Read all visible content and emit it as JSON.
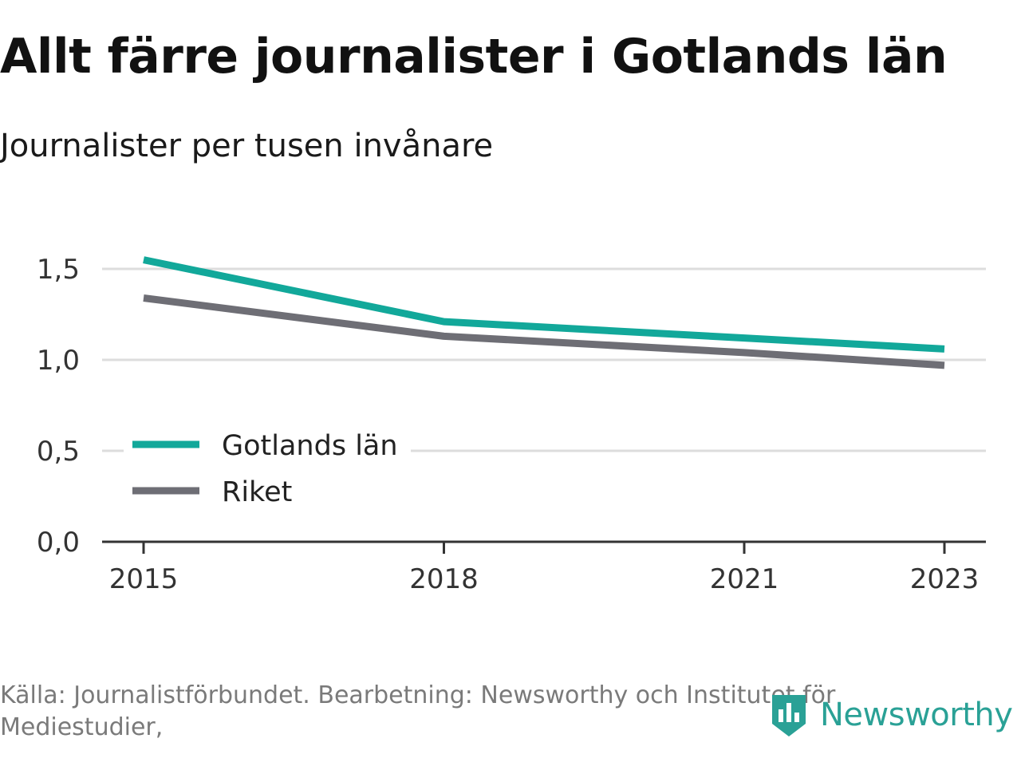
{
  "header": {
    "title": "Allt färre journalister i Gotlands län",
    "subtitle": "Journalister per tusen invånare"
  },
  "footer": {
    "source": "Källa: Journalistförbundet. Bearbetning: Newsworthy och Institutet för Mediestudier,",
    "logo_text": "Newsworthy"
  },
  "colors": {
    "gotland": "#12a89a",
    "riket": "#6e6e75",
    "grid": "#dddddd",
    "axis": "#333333",
    "brand": "#2aa196"
  },
  "chart_data": {
    "type": "line",
    "x": [
      2015,
      2018,
      2021,
      2023
    ],
    "x_ticks": [
      "2015",
      "2018",
      "2021",
      "2023"
    ],
    "y_ticks": [
      "0,0",
      "0,5",
      "1,0",
      "1,5"
    ],
    "ylim": [
      0,
      1.6
    ],
    "grid": true,
    "legend_position": "bottom-left",
    "series": [
      {
        "name": "Gotlands län",
        "color_key": "gotland",
        "values": [
          1.55,
          1.21,
          1.12,
          1.06
        ]
      },
      {
        "name": "Riket",
        "color_key": "riket",
        "values": [
          1.34,
          1.13,
          1.04,
          0.97
        ]
      }
    ]
  }
}
